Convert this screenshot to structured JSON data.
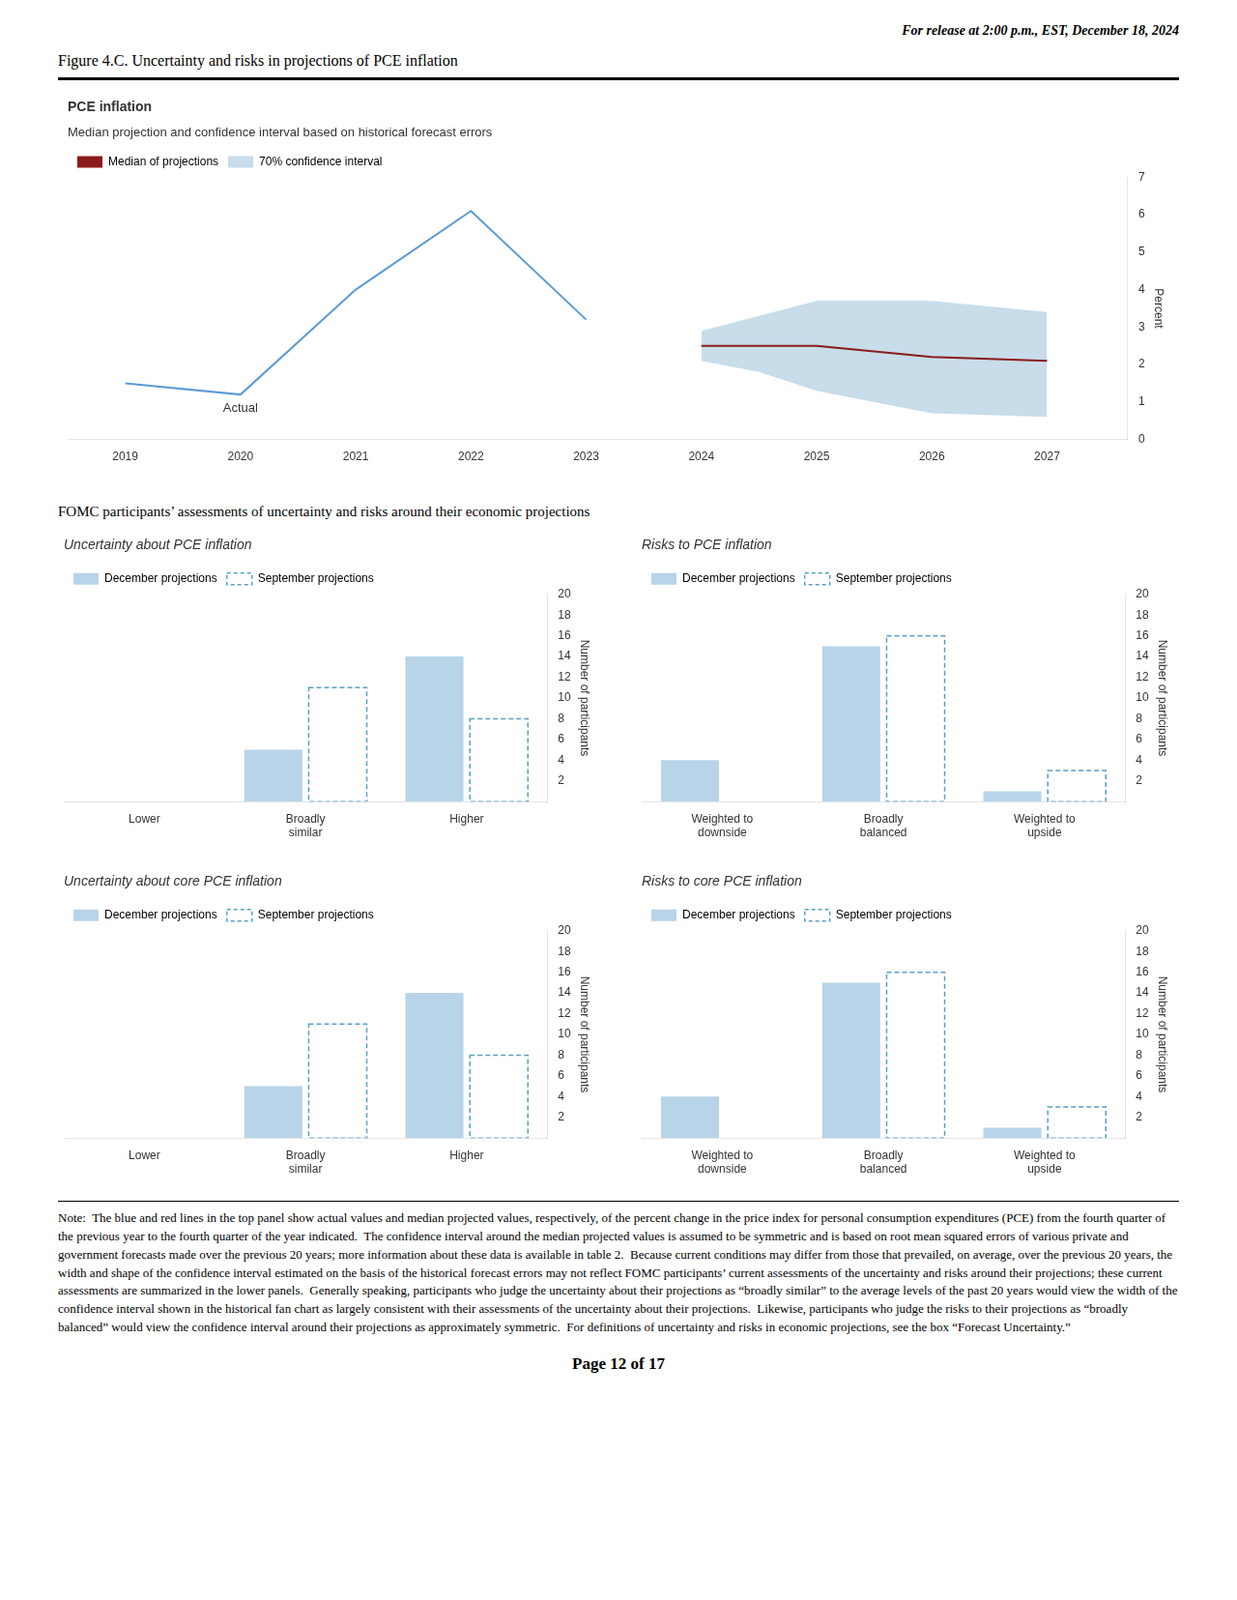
{
  "title": "Figure 4.C. Uncertainty and risks in projections of PCE inflation",
  "annotations": [
    "For release at 2:00 p.m., EST, December 18, 2024",
    "FOMC participants’ assessments of uncertainty and risks around their economic projections",
    "Note:  The blue and red lines in the top panel show actual values and median projected values, respectively, of the percent change in the price index for personal consumption expenditures (PCE) from the fourth quarter of the previous year to the fourth quarter of the year indicated.  The confidence interval around the median projected values is assumed to be symmetric and is based on root mean squared errors of various private and government forecasts made over the previous 20 years; more information about these data is available in table 2.  Because current conditions may differ from those that prevailed, on average, over the previous 20 years, the width and shape of the confidence interval estimated on the basis of the historical forecast errors may not reflect FOMC participants’ current assessments of the uncertainty and risks around their projections; these current assessments are summarized in the lower panels.  Generally speaking, participants who judge the uncertainty about their projections as “broadly similar” to the average levels of the past 20 years would view the width of the confidence interval shown in the historical fan chart as largely consistent with their assessments of the uncertainty about their projections.  Likewise, participants who judge the risks to their projections as “broadly balanced” would view the confidence interval around their projections as approximately symmetric.  For definitions of uncertainty and risks in economic projections, see the box “Forecast Uncertainty.”",
    "Page 12 of 17"
  ],
  "chart_data": [
    {
      "type": "line",
      "title": "PCE inflation",
      "subtitle": "Median projection and confidence interval based on historical forecast errors",
      "ylabel": "Percent",
      "annotations": [
        "Actual"
      ],
      "xlim": [
        2018.5,
        2027.7
      ],
      "xticks": [
        2019,
        2020,
        2021,
        2022,
        2023,
        2024,
        2025,
        2026,
        2027
      ],
      "ylim": [
        0,
        7
      ],
      "yticks": [
        0,
        1,
        2,
        3,
        4,
        5,
        6,
        7
      ],
      "grid": false,
      "legend": "upper left",
      "series": [
        {
          "color": "#5b9bd5",
          "x": [
            2019,
            2020,
            2021,
            2022,
            2023
          ],
          "values": [
            1.5,
            1.2,
            4.0,
            6.1,
            3.2
          ]
        },
        {
          "name": "Median of projections",
          "color": "#8b1a1a",
          "x": [
            2024,
            2025,
            2026,
            2027
          ],
          "values": [
            2.5,
            2.5,
            2.2,
            2.1
          ]
        },
        {
          "name": "70% confidence interval",
          "type": "band",
          "color": "#c8dcea",
          "x": [
            2024,
            2024.5,
            2025,
            2026,
            2027
          ],
          "lower": [
            2.1,
            1.8,
            1.3,
            0.7,
            0.6
          ],
          "upper": [
            2.9,
            3.3,
            3.7,
            3.7,
            3.4
          ]
        }
      ]
    },
    {
      "type": "bar",
      "title": "Uncertainty about PCE inflation",
      "ylabel": "Number of participants",
      "categories": [
        "Lower",
        "Broadly\nsimilar",
        "Higher"
      ],
      "ylim": [
        0,
        20
      ],
      "yticks": [
        2,
        4,
        6,
        8,
        10,
        12,
        14,
        16,
        18,
        20
      ],
      "grid": false,
      "legend": "upper left",
      "series": [
        {
          "name": "December projections",
          "color": "#b8d4e8",
          "values": [
            0,
            5,
            14
          ]
        },
        {
          "name": "September projections",
          "color": "#5a9ec8",
          "line_style": "dashed",
          "values": [
            0,
            11,
            8
          ]
        }
      ]
    },
    {
      "type": "bar",
      "title": "Risks to PCE inflation",
      "ylabel": "Number of participants",
      "categories": [
        "Weighted to\ndownside",
        "Broadly\nbalanced",
        "Weighted to\nupside"
      ],
      "ylim": [
        0,
        20
      ],
      "yticks": [
        2,
        4,
        6,
        8,
        10,
        12,
        14,
        16,
        18,
        20
      ],
      "grid": false,
      "legend": "upper left",
      "series": [
        {
          "name": "December projections",
          "color": "#b8d4e8",
          "values": [
            4,
            15,
            1
          ]
        },
        {
          "name": "September projections",
          "color": "#5a9ec8",
          "line_style": "dashed",
          "values": [
            0,
            16,
            3
          ]
        }
      ]
    },
    {
      "type": "bar",
      "title": "Uncertainty about core PCE inflation",
      "ylabel": "Number of participants",
      "categories": [
        "Lower",
        "Broadly\nsimilar",
        "Higher"
      ],
      "ylim": [
        0,
        20
      ],
      "yticks": [
        2,
        4,
        6,
        8,
        10,
        12,
        14,
        16,
        18,
        20
      ],
      "grid": false,
      "legend": "upper left",
      "series": [
        {
          "name": "December projections",
          "color": "#b8d4e8",
          "values": [
            0,
            5,
            14
          ]
        },
        {
          "name": "September projections",
          "color": "#5a9ec8",
          "line_style": "dashed",
          "values": [
            0,
            11,
            8
          ]
        }
      ]
    },
    {
      "type": "bar",
      "title": "Risks to core PCE inflation",
      "ylabel": "Number of participants",
      "categories": [
        "Weighted to\ndownside",
        "Broadly\nbalanced",
        "Weighted to\nupside"
      ],
      "ylim": [
        0,
        20
      ],
      "yticks": [
        2,
        4,
        6,
        8,
        10,
        12,
        14,
        16,
        18,
        20
      ],
      "grid": false,
      "legend": "upper left",
      "series": [
        {
          "name": "December projections",
          "color": "#b8d4e8",
          "values": [
            4,
            15,
            1
          ]
        },
        {
          "name": "September projections",
          "color": "#5a9ec8",
          "line_style": "dashed",
          "values": [
            0,
            16,
            3
          ]
        }
      ]
    }
  ]
}
